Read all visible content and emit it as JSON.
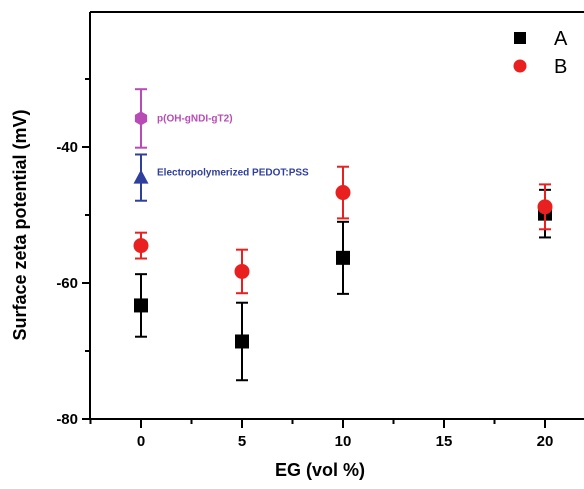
{
  "chart_data": {
    "type": "scatter",
    "title": "",
    "xlabel": "EG (vol %)",
    "ylabel": "Surface zeta potential (mV)",
    "xlim": [
      -3.5,
      22
    ],
    "ylim": [
      -80,
      -20
    ],
    "x_ticks": [
      0,
      5,
      10,
      15,
      20
    ],
    "y_ticks": [
      -40,
      -60,
      -80
    ],
    "grid": false,
    "legend_position": "top-right",
    "series": [
      {
        "name": "A",
        "marker": "square",
        "color": "#000000",
        "points": [
          {
            "x": 0,
            "y": -63.3,
            "err": 4.6
          },
          {
            "x": 5,
            "y": -68.6,
            "err": 5.7
          },
          {
            "x": 10,
            "y": -56.3,
            "err": 5.3
          },
          {
            "x": 20,
            "y": -49.8,
            "err": 3.5
          }
        ]
      },
      {
        "name": "B",
        "marker": "circle",
        "color": "#e8201f",
        "points": [
          {
            "x": 0,
            "y": -54.5,
            "err": 1.9
          },
          {
            "x": 5,
            "y": -58.3,
            "err": 3.2
          },
          {
            "x": 10,
            "y": -46.7,
            "err": 3.8
          },
          {
            "x": 20,
            "y": -48.8,
            "err": 3.3
          }
        ]
      }
    ],
    "annotations": [
      {
        "label": "p(OH-gNDI-gT2)",
        "marker": "hexagon",
        "color": "#b84bb5",
        "x": 0,
        "y": -35.8,
        "err": 4.3
      },
      {
        "label": "Electropolymerized PEDOT:PSS",
        "marker": "triangle",
        "color": "#2e3f9e",
        "x": 0,
        "y": -44.5,
        "err": 3.4
      }
    ]
  }
}
